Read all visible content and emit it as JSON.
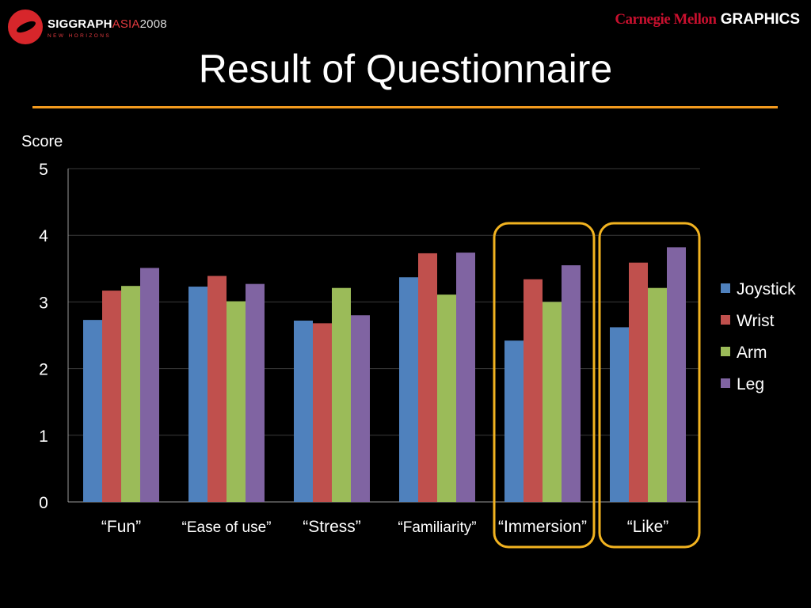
{
  "header": {
    "left_logo": {
      "brand": "SIGGRAPH",
      "region": "ASIA",
      "year": "2008",
      "tagline": "NEW HORIZONS"
    },
    "right_logo": {
      "name": "Carnegie Mellon",
      "dept": "GRAPHICS"
    }
  },
  "title": "Result of Questionnaire",
  "colors": {
    "rule": "#f39a1e",
    "highlight": "#f2b320",
    "Joystick": "#4f81bd",
    "Wrist": "#c0504d",
    "Arm": "#9bbb59",
    "Leg": "#8064a2"
  },
  "chart_data": {
    "type": "bar",
    "ylabel": "Score",
    "ylim": [
      0,
      5
    ],
    "yticks": [
      0,
      1,
      2,
      3,
      4,
      5
    ],
    "grid": true,
    "legend_position": "right",
    "categories": [
      "“Fun”",
      "“Ease of use”",
      "“Stress”",
      "“Familiarity”",
      "“Immersion”",
      "“Like”"
    ],
    "series": [
      {
        "name": "Joystick",
        "values": [
          2.73,
          3.23,
          2.72,
          3.37,
          2.42,
          2.62
        ]
      },
      {
        "name": "Wrist",
        "values": [
          3.17,
          3.39,
          2.68,
          3.73,
          3.34,
          3.59
        ]
      },
      {
        "name": "Arm",
        "values": [
          3.24,
          3.01,
          3.21,
          3.11,
          3.0,
          3.21
        ]
      },
      {
        "name": "Leg",
        "values": [
          3.51,
          3.27,
          2.8,
          3.74,
          3.55,
          3.82
        ]
      }
    ],
    "highlighted_categories": [
      "“Immersion”",
      "“Like”"
    ]
  }
}
